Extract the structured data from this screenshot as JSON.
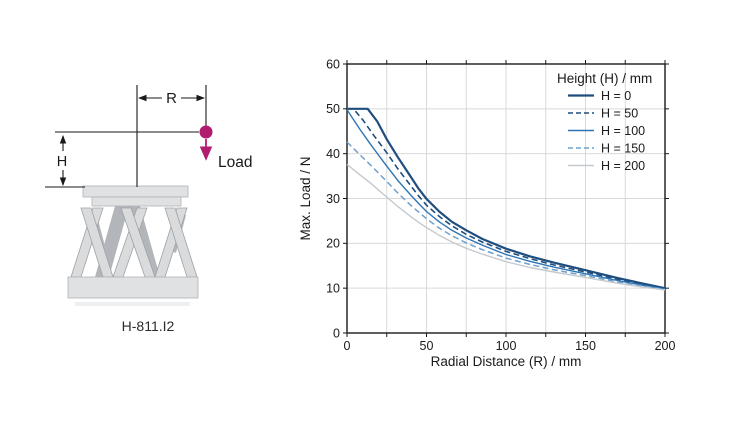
{
  "diagram": {
    "caption": "H-811.I2",
    "labels": {
      "radius": "R",
      "height": "H",
      "load": "Load"
    },
    "colors": {
      "load_marker": "#b01c6e",
      "lines": "#1a1a1a",
      "plate": "#dfe1e3",
      "strut_light": "#d9dbdd",
      "strut_dark": "#b2b6ba"
    }
  },
  "chart_data": {
    "type": "line",
    "title": "",
    "xlabel": "Radial Distance (R) / mm",
    "ylabel": "Max. Load / N",
    "xlim": [
      0,
      200
    ],
    "ylim": [
      0,
      60
    ],
    "x_ticks": [
      0,
      50,
      100,
      150,
      200
    ],
    "y_ticks": [
      0,
      10,
      20,
      30,
      40,
      50,
      60
    ],
    "x_grid_step": 25,
    "y_grid_step": 10,
    "grid": true,
    "frame_color": "#1a1a1a",
    "grid_color": "#d9d9d9",
    "legend": {
      "title": "Height (H) / mm",
      "position": "top-right"
    },
    "series": [
      {
        "name": "H = 0",
        "color": "#1f4e7e",
        "style": "solid",
        "width": 2.2,
        "points": [
          [
            0,
            50
          ],
          [
            13,
            50
          ],
          [
            19,
            47.2
          ],
          [
            25,
            43.2
          ],
          [
            32,
            39.2
          ],
          [
            40,
            34.9
          ],
          [
            45,
            32.2
          ],
          [
            50,
            29.9
          ],
          [
            58,
            27.1
          ],
          [
            66,
            24.8
          ],
          [
            75,
            22.9
          ],
          [
            85,
            21.0
          ],
          [
            100,
            18.8
          ],
          [
            115,
            17.1
          ],
          [
            130,
            15.7
          ],
          [
            150,
            14.0
          ],
          [
            170,
            12.3
          ],
          [
            185,
            11.1
          ],
          [
            200,
            10.0
          ]
        ]
      },
      {
        "name": "H = 50",
        "color": "#1f4e7e",
        "style": "dashed",
        "width": 1.6,
        "points": [
          [
            0,
            50
          ],
          [
            4,
            50
          ],
          [
            10,
            47.5
          ],
          [
            17,
            44.0
          ],
          [
            25,
            40.2
          ],
          [
            32,
            36.6
          ],
          [
            40,
            32.9
          ],
          [
            45,
            30.6
          ],
          [
            50,
            28.5
          ],
          [
            58,
            26.0
          ],
          [
            66,
            23.9
          ],
          [
            75,
            22.0
          ],
          [
            85,
            20.3
          ],
          [
            100,
            18.2
          ],
          [
            115,
            16.6
          ],
          [
            130,
            15.2
          ],
          [
            150,
            13.6
          ],
          [
            170,
            12.0
          ],
          [
            185,
            10.9
          ],
          [
            200,
            9.9
          ]
        ]
      },
      {
        "name": "H = 100",
        "color": "#2e75b6",
        "style": "solid",
        "width": 1.4,
        "points": [
          [
            0,
            49.8
          ],
          [
            8,
            45.5
          ],
          [
            15,
            42.0
          ],
          [
            25,
            37.2
          ],
          [
            32,
            34.0
          ],
          [
            40,
            30.8
          ],
          [
            45,
            28.9
          ],
          [
            50,
            27.1
          ],
          [
            58,
            24.8
          ],
          [
            66,
            22.9
          ],
          [
            75,
            21.2
          ],
          [
            85,
            19.6
          ],
          [
            100,
            17.5
          ],
          [
            115,
            16.0
          ],
          [
            130,
            14.7
          ],
          [
            150,
            13.2
          ],
          [
            170,
            11.7
          ],
          [
            185,
            10.7
          ],
          [
            200,
            9.8
          ]
        ]
      },
      {
        "name": "H = 150",
        "color": "#6fa0ce",
        "style": "dashed",
        "width": 1.5,
        "points": [
          [
            0,
            42.6
          ],
          [
            8,
            39.8
          ],
          [
            15,
            37.4
          ],
          [
            25,
            33.8
          ],
          [
            32,
            31.2
          ],
          [
            40,
            28.5
          ],
          [
            45,
            27.0
          ],
          [
            50,
            25.5
          ],
          [
            58,
            23.4
          ],
          [
            66,
            21.7
          ],
          [
            75,
            20.1
          ],
          [
            85,
            18.6
          ],
          [
            100,
            16.7
          ],
          [
            115,
            15.3
          ],
          [
            130,
            14.1
          ],
          [
            150,
            12.8
          ],
          [
            170,
            11.4
          ],
          [
            185,
            10.5
          ],
          [
            200,
            9.7
          ]
        ]
      },
      {
        "name": "H = 200",
        "color": "#c5cacf",
        "style": "solid",
        "width": 1.4,
        "points": [
          [
            0,
            37.6
          ],
          [
            8,
            35.3
          ],
          [
            15,
            33.4
          ],
          [
            25,
            30.3
          ],
          [
            32,
            28.2
          ],
          [
            40,
            26.0
          ],
          [
            45,
            24.7
          ],
          [
            50,
            23.5
          ],
          [
            58,
            21.8
          ],
          [
            66,
            20.3
          ],
          [
            75,
            18.9
          ],
          [
            85,
            17.6
          ],
          [
            100,
            15.9
          ],
          [
            115,
            14.6
          ],
          [
            130,
            13.6
          ],
          [
            150,
            12.4
          ],
          [
            170,
            11.1
          ],
          [
            185,
            10.3
          ],
          [
            200,
            9.6
          ]
        ]
      }
    ]
  }
}
